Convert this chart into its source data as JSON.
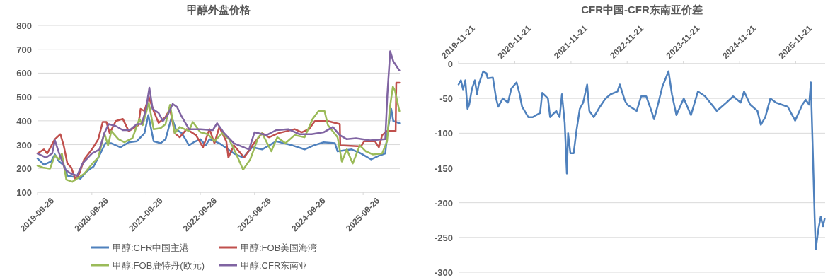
{
  "chart_data": [
    {
      "type": "line",
      "title": "甲醇外盘价格",
      "xlim": [
        "2019-09-26",
        "2026-05-31"
      ],
      "ylim": [
        100,
        800
      ],
      "xticks": [
        "2019-09-26",
        "2020-09-26",
        "2021-09-26",
        "2022-09-26",
        "2023-09-26",
        "2024-09-26",
        "2025-09-26"
      ],
      "yticks": [
        100,
        200,
        300,
        400,
        500,
        600,
        700,
        800
      ],
      "grid": "y",
      "legend": "bottom",
      "series": [
        {
          "name": "甲醇:CFR中国主港",
          "color": "#4f81bd",
          "x": [
            "2019-09-26",
            "2019-11-08",
            "2019-12-26",
            "2020-01-21",
            "2020-02-19",
            "2020-03-24",
            "2020-04-14",
            "2020-05-24",
            "2020-07-11",
            "2020-08-20",
            "2020-10-07",
            "2020-11-16",
            "2020-12-26",
            "2021-02-04",
            "2021-04-07",
            "2021-06-01",
            "2021-07-25",
            "2021-09-15",
            "2021-10-11",
            "2021-11-16",
            "2022-01-02",
            "2022-02-04",
            "2022-03-17",
            "2022-04-14",
            "2022-05-25",
            "2022-07-12",
            "2022-08-12",
            "2022-09-26",
            "2022-11-01",
            "2022-11-27",
            "2023-02-01",
            "2023-05-10",
            "2023-07-11",
            "2023-09-11",
            "2023-11-16",
            "2024-02-19",
            "2024-06-07",
            "2024-08-28",
            "2024-10-28",
            "2025-01-03",
            "2025-03-20",
            "2025-04-07",
            "2025-07-11",
            "2025-09-12",
            "2025-11-19",
            "2026-01-17",
            "2026-02-22",
            "2026-03-08",
            "2026-04-03",
            "2026-04-17",
            "2026-05-28"
          ],
          "values": [
            242,
            216,
            229,
            259,
            229,
            212,
            170,
            165,
            157,
            187,
            208,
            255,
            306,
            306,
            289,
            310,
            314,
            348,
            424,
            314,
            306,
            323,
            416,
            365,
            348,
            297,
            310,
            323,
            297,
            323,
            306,
            263,
            246,
            289,
            280,
            314,
            297,
            280,
            297,
            310,
            306,
            272,
            280,
            263,
            238,
            255,
            263,
            348,
            450,
            399,
            390
          ]
        },
        {
          "name": "甲醇:FOB美国海湾",
          "color": "#c0504d",
          "x": [
            "2019-09-26",
            "2019-11-08",
            "2019-11-30",
            "2020-01-21",
            "2020-02-27",
            "2020-03-20",
            "2020-04-14",
            "2020-05-10",
            "2020-06-08",
            "2020-07-03",
            "2020-08-05",
            "2020-09-26",
            "2020-11-08",
            "2020-12-08",
            "2021-01-02",
            "2021-01-24",
            "2021-03-06",
            "2021-04-22",
            "2021-06-01",
            "2021-08-05",
            "2021-08-20",
            "2021-09-15",
            "2021-10-14",
            "2021-11-16",
            "2021-12-19",
            "2022-02-04",
            "2022-03-06",
            "2022-04-07",
            "2022-05-10",
            "2022-06-26",
            "2022-08-28",
            "2022-10-14",
            "2022-11-27",
            "2022-12-30",
            "2023-02-01",
            "2023-03-20",
            "2023-04-03",
            "2023-05-10",
            "2023-07-18",
            "2023-09-22",
            "2023-11-16",
            "2024-01-02",
            "2024-03-04",
            "2024-06-22",
            "2024-08-08",
            "2024-09-26",
            "2024-11-05",
            "2025-02-01",
            "2025-04-22",
            "2025-04-25",
            "2025-09-12",
            "2025-10-03",
            "2025-12-15",
            "2026-01-10",
            "2026-02-01",
            "2026-03-06",
            "2026-05-03",
            "2026-05-07",
            "2026-05-28"
          ],
          "values": [
            263,
            280,
            263,
            323,
            344,
            297,
            221,
            204,
            153,
            178,
            238,
            280,
            323,
            395,
            395,
            348,
            399,
            408,
            357,
            382,
            450,
            441,
            501,
            441,
            391,
            416,
            450,
            348,
            331,
            365,
            340,
            289,
            365,
            306,
            374,
            314,
            246,
            297,
            246,
            306,
            348,
            331,
            348,
            365,
            352,
            365,
            399,
            399,
            386,
            297,
            293,
            314,
            314,
            289,
            340,
            357,
            357,
            560,
            560
          ]
        },
        {
          "name": "甲醇:FOB鹿特丹(欧元)",
          "color": "#9bbb59",
          "x": [
            "2019-09-26",
            "2019-11-01",
            "2019-12-19",
            "2020-01-21",
            "2020-02-19",
            "2020-03-08",
            "2020-04-07",
            "2020-05-17",
            "2020-06-26",
            "2020-08-05",
            "2020-09-30",
            "2020-11-08",
            "2020-12-19",
            "2021-01-13",
            "2021-02-04",
            "2021-03-24",
            "2021-05-03",
            "2021-06-26",
            "2021-08-12",
            "2021-09-03",
            "2021-10-14",
            "2021-11-16",
            "2022-01-02",
            "2022-02-04",
            "2022-03-06",
            "2022-04-07",
            "2022-05-10",
            "2022-07-12",
            "2022-08-06",
            "2022-09-26",
            "2022-11-16",
            "2022-12-30",
            "2023-02-19",
            "2023-04-07",
            "2023-05-24",
            "2023-07-11",
            "2023-08-28",
            "2023-10-21",
            "2023-11-16",
            "2024-01-17",
            "2024-02-26",
            "2024-04-21",
            "2024-06-22",
            "2024-08-28",
            "2024-10-21",
            "2024-11-30",
            "2025-01-09",
            "2025-02-01",
            "2025-04-07",
            "2025-05-06",
            "2025-06-08",
            "2025-07-18",
            "2025-09-04",
            "2025-10-14",
            "2025-11-30",
            "2026-02-01",
            "2026-03-06",
            "2026-03-24",
            "2026-04-14",
            "2026-04-29",
            "2026-05-13",
            "2026-05-28"
          ],
          "values": [
            212,
            204,
            199,
            255,
            238,
            263,
            153,
            144,
            161,
            178,
            221,
            246,
            348,
            297,
            357,
            323,
            310,
            327,
            408,
            382,
            475,
            365,
            369,
            386,
            467,
            348,
            374,
            357,
            395,
            352,
            344,
            314,
            348,
            323,
            263,
            195,
            238,
            331,
            348,
            272,
            331,
            306,
            340,
            331,
            408,
            441,
            441,
            382,
            331,
            229,
            280,
            221,
            297,
            272,
            259,
            263,
            314,
            450,
            543,
            526,
            484,
            441
          ]
        },
        {
          "name": "甲醇:CFR东南亚",
          "color": "#8064a2",
          "x": [
            "2019-09-26",
            "2019-11-23",
            "2020-01-03",
            "2020-01-21",
            "2020-02-19",
            "2020-03-31",
            "2020-05-10",
            "2020-06-19",
            "2020-07-25",
            "2020-09-26",
            "2020-11-16",
            "2020-12-19",
            "2021-01-17",
            "2021-03-06",
            "2021-04-22",
            "2021-06-08",
            "2021-07-25",
            "2021-08-27",
            "2021-09-26",
            "2021-10-18",
            "2021-11-09",
            "2021-12-19",
            "2022-01-17",
            "2022-02-19",
            "2022-03-24",
            "2022-04-22",
            "2022-05-25",
            "2022-07-12",
            "2022-09-26",
            "2022-12-19",
            "2023-01-17",
            "2023-03-06",
            "2023-05-10",
            "2023-08-20",
            "2023-09-26",
            "2023-12-15",
            "2024-02-19",
            "2024-05-10",
            "2024-07-25",
            "2024-10-14",
            "2025-01-03",
            "2025-03-06",
            "2025-04-22",
            "2025-06-08",
            "2025-08-09",
            "2025-11-12",
            "2026-02-22",
            "2026-03-08",
            "2026-03-27",
            "2026-04-17",
            "2026-05-28"
          ],
          "values": [
            263,
            246,
            263,
            318,
            263,
            195,
            178,
            170,
            221,
            263,
            280,
            348,
            386,
            378,
            361,
            361,
            386,
            386,
            450,
            539,
            450,
            433,
            399,
            425,
            471,
            458,
            416,
            365,
            365,
            361,
            390,
            348,
            306,
            280,
            352,
            340,
            361,
            365,
            344,
            344,
            352,
            374,
            340,
            323,
            327,
            318,
            323,
            509,
            692,
            650,
            611
          ]
        }
      ]
    },
    {
      "type": "line",
      "title": "CFR中国-CFR东南亚价差",
      "xlim": [
        "2019-11-21",
        "2026-05-31"
      ],
      "ylim": [
        -300,
        0
      ],
      "xticks": [
        "2019-11-21",
        "2020-11-21",
        "2021-11-21",
        "2022-11-21",
        "2023-11-21",
        "2024-11-21",
        "2025-11-21"
      ],
      "yticks": [
        -300,
        -250,
        -200,
        -150,
        -100,
        -50,
        0
      ],
      "grid": "y",
      "series": [
        {
          "color": "#4f81bd",
          "x": [
            "2019-11-21",
            "2019-12-06",
            "2019-12-20",
            "2020-01-04",
            "2020-01-18",
            "2020-01-29",
            "2020-02-16",
            "2020-03-06",
            "2020-03-20",
            "2020-03-31",
            "2020-04-29",
            "2020-05-21",
            "2020-05-28",
            "2020-07-01",
            "2020-07-22",
            "2020-08-05",
            "2020-09-04",
            "2020-10-07",
            "2020-10-29",
            "2020-12-02",
            "2020-12-20",
            "2021-01-07",
            "2021-02-16",
            "2021-03-17",
            "2021-04-08",
            "2021-05-04",
            "2021-05-18",
            "2021-06-24",
            "2021-07-08",
            "2021-08-17",
            "2021-09-08",
            "2021-09-23",
            "2021-10-11",
            "2021-10-25",
            "2021-11-02",
            "2021-11-17",
            "2021-12-08",
            "2021-12-26",
            "2022-01-17",
            "2022-02-08",
            "2022-03-06",
            "2022-03-20",
            "2022-04-18",
            "2022-05-28",
            "2022-07-04",
            "2022-08-06",
            "2022-09-19",
            "2022-10-04",
            "2022-11-06",
            "2022-11-21",
            "2023-01-22",
            "2023-02-20",
            "2023-03-25",
            "2023-04-23",
            "2023-05-15",
            "2023-06-09",
            "2023-07-08",
            "2023-08-17",
            "2023-09-08",
            "2023-10-07",
            "2023-11-24",
            "2024-01-10",
            "2024-02-24",
            "2024-04-11",
            "2024-06-26",
            "2024-08-27",
            "2024-10-10",
            "2024-11-28",
            "2024-12-20",
            "2025-01-29",
            "2025-03-17",
            "2025-04-08",
            "2025-05-07",
            "2025-06-09",
            "2025-07-15",
            "2025-09-30",
            "2025-11-17",
            "2026-01-03",
            "2026-01-25",
            "2026-02-16",
            "2026-02-27",
            "2026-03-13",
            "2026-03-24",
            "2026-03-31",
            "2026-04-18",
            "2026-05-03",
            "2026-05-17",
            "2026-05-28"
          ],
          "values": [
            -30,
            -24,
            -37,
            -24,
            -65,
            -59,
            -36,
            -24,
            -44,
            -30,
            -11,
            -14,
            -21,
            -20,
            -50,
            -62,
            -50,
            -56,
            -36,
            -27,
            -42,
            -62,
            -77,
            -77,
            -74,
            -71,
            -42,
            -50,
            -77,
            -68,
            -77,
            -44,
            -85,
            -158,
            -100,
            -129,
            -129,
            -97,
            -65,
            -56,
            -30,
            -68,
            -77,
            -62,
            -50,
            -44,
            -40,
            -30,
            -53,
            -59,
            -68,
            -47,
            -47,
            -65,
            -80,
            -59,
            -33,
            -11,
            -44,
            -74,
            -50,
            -74,
            -40,
            -47,
            -68,
            -56,
            -47,
            -56,
            -40,
            -59,
            -68,
            -88,
            -77,
            -50,
            -56,
            -62,
            -82,
            -59,
            -52,
            -59,
            -27,
            -135,
            -223,
            -267,
            -237,
            -220,
            -234,
            -223
          ]
        }
      ]
    }
  ]
}
